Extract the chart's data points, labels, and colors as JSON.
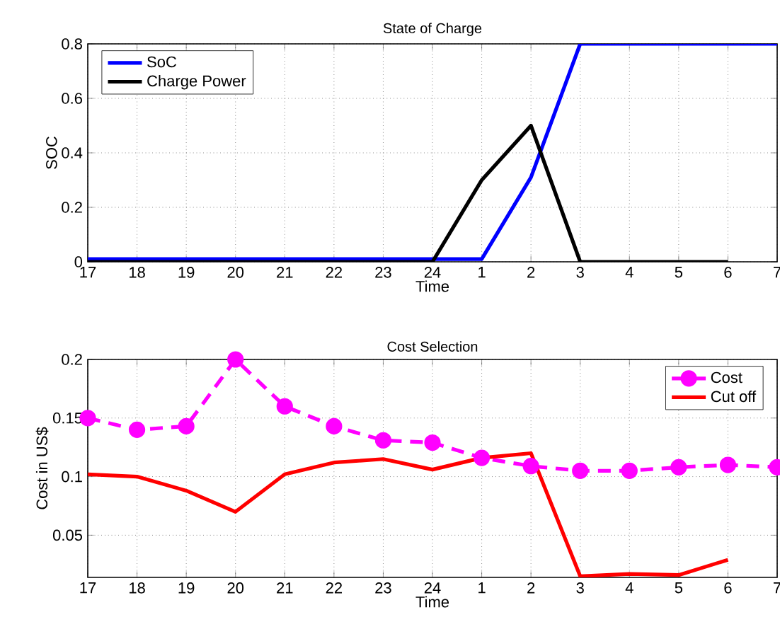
{
  "chart_data": [
    {
      "type": "line",
      "title": "State of Charge",
      "xlabel": "Time",
      "ylabel": "SOC",
      "categories": [
        "17",
        "18",
        "19",
        "20",
        "21",
        "22",
        "23",
        "24",
        "1",
        "2",
        "3",
        "4",
        "5",
        "6",
        "7"
      ],
      "ylim": [
        0,
        0.8
      ],
      "yticks": [
        0,
        0.2,
        0.4,
        0.6,
        0.8
      ],
      "grid": true,
      "legend": "top left",
      "series": [
        {
          "name": "SoC",
          "color": "#0000ff",
          "line_style": "solid",
          "marker": "none",
          "values": [
            0.01,
            0.01,
            0.01,
            0.01,
            0.01,
            0.01,
            0.01,
            0.01,
            0.01,
            0.31,
            0.8,
            0.8,
            0.8,
            0.8,
            0.8
          ]
        },
        {
          "name": "Charge Power",
          "color": "#000000",
          "line_style": "solid",
          "marker": "none",
          "values": [
            0,
            0,
            0,
            0,
            0,
            0,
            0,
            0,
            0.3,
            0.5,
            0,
            0,
            0,
            0,
            null
          ]
        }
      ]
    },
    {
      "type": "line",
      "title": "Cost Selection",
      "xlabel": "Time",
      "ylabel": "Cost in US$",
      "categories": [
        "17",
        "18",
        "19",
        "20",
        "21",
        "22",
        "23",
        "24",
        "1",
        "2",
        "3",
        "4",
        "5",
        "6",
        "7"
      ],
      "ylim": [
        0.014,
        0.2
      ],
      "yticks": [
        0.05,
        0.1,
        0.15,
        0.2
      ],
      "grid": true,
      "legend": "top right",
      "series": [
        {
          "name": "Cost",
          "color": "#ff00ff",
          "line_style": "dashed",
          "marker": "circle",
          "values": [
            0.15,
            0.14,
            0.143,
            0.2,
            0.16,
            0.143,
            0.131,
            0.129,
            0.116,
            0.109,
            0.105,
            0.105,
            0.108,
            0.11,
            0.108
          ]
        },
        {
          "name": "Cut off",
          "color": "#ff0000",
          "line_style": "solid",
          "marker": "none",
          "values": [
            0.102,
            0.1,
            0.088,
            0.07,
            0.102,
            0.112,
            0.115,
            0.106,
            0.116,
            0.12,
            0.015,
            0.017,
            0.016,
            0.029,
            null
          ]
        }
      ]
    }
  ]
}
